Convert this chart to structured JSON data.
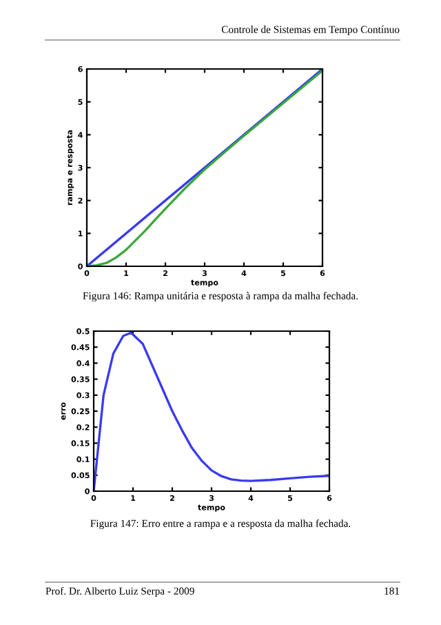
{
  "chart_data": [
    {
      "type": "line",
      "xlabel": "tempo",
      "ylabel": "rampa e resposta",
      "xlim": [
        0,
        6
      ],
      "ylim": [
        0,
        6
      ],
      "xticks": [
        0,
        1,
        2,
        3,
        4,
        5,
        6
      ],
      "yticks": [
        0,
        1,
        2,
        3,
        4,
        5,
        6
      ],
      "grid": false,
      "legend": false,
      "marker": "none",
      "line_style": "solid",
      "annotations": [
        "Controle de Sistemas em Tempo Contínuo",
        "Figura 146: Rampa unitária e resposta à rampa da malha fechada."
      ],
      "series": [
        {
          "color": "#3a3af0",
          "x": [
            0,
            6
          ],
          "values": [
            0,
            6
          ]
        },
        {
          "color": "#3aa83a",
          "x": [
            0,
            0.25,
            0.5,
            0.75,
            1,
            1.25,
            1.5,
            1.75,
            2,
            2.25,
            2.5,
            2.75,
            3,
            3.5,
            4,
            5,
            6
          ],
          "values": [
            0,
            0.03,
            0.1,
            0.27,
            0.5,
            0.8,
            1.1,
            1.43,
            1.75,
            2.06,
            2.37,
            2.66,
            2.94,
            3.46,
            3.97,
            4.96,
            5.95
          ]
        }
      ]
    },
    {
      "type": "line",
      "xlabel": "tempo",
      "ylabel": "erro",
      "xlim": [
        0,
        6
      ],
      "ylim": [
        0,
        0.5
      ],
      "xticks": [
        0,
        1,
        2,
        3,
        4,
        5,
        6
      ],
      "yticks": [
        0,
        0.05,
        0.1,
        0.15,
        0.2,
        0.25,
        0.3,
        0.35,
        0.4,
        0.45,
        0.5
      ],
      "grid": false,
      "legend": false,
      "marker": "none",
      "line_style": "solid",
      "annotations": [
        "Figura 147: Erro entre a rampa e a resposta da malha fechada.",
        "Prof. Dr. Alberto Luiz Serpa - 2009",
        "181"
      ],
      "series": [
        {
          "color": "#3a3af0",
          "x": [
            0,
            0.1,
            0.25,
            0.5,
            0.75,
            0.95,
            1.25,
            1.5,
            1.75,
            2,
            2.25,
            2.5,
            2.75,
            3,
            3.25,
            3.5,
            3.75,
            4,
            4.5,
            5,
            5.5,
            6
          ],
          "values": [
            0,
            0.12,
            0.3,
            0.43,
            0.485,
            0.495,
            0.46,
            0.39,
            0.32,
            0.25,
            0.19,
            0.135,
            0.095,
            0.065,
            0.047,
            0.037,
            0.033,
            0.032,
            0.035,
            0.04,
            0.045,
            0.048
          ]
        }
      ]
    }
  ]
}
